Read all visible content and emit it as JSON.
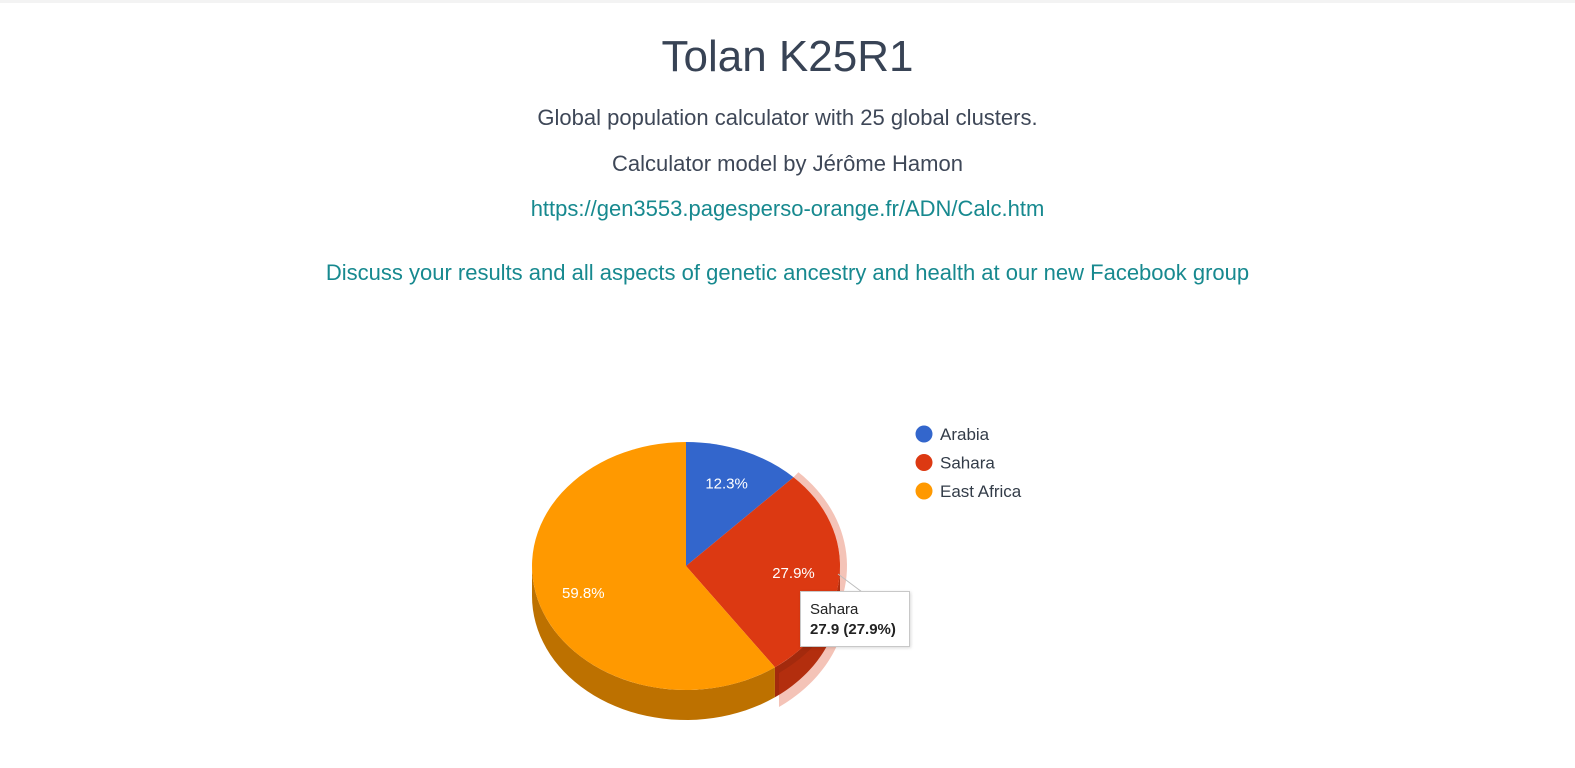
{
  "header": {
    "title": "Tolan K25R1",
    "subtitle": "Global population calculator with 25 global clusters.",
    "credit": "Calculator model by Jérôme Hamon",
    "link": "https://gen3553.pagesperso-orange.fr/ADN/Calc.htm",
    "facebook_link": "Discuss your results and all aspects of genetic ancestry and health at our new Facebook group"
  },
  "chart_data": {
    "type": "pie",
    "style": "3d",
    "legend_position": "right",
    "slices": [
      {
        "name": "Arabia",
        "value": 12.3,
        "label": "12.3%",
        "color": "#3366cc"
      },
      {
        "name": "Sahara",
        "value": 27.9,
        "label": "27.9%",
        "color": "#dc3912"
      },
      {
        "name": "East Africa",
        "value": 59.8,
        "label": "59.8%",
        "color": "#ff9900"
      }
    ],
    "tooltip": {
      "slice": "Sahara",
      "name": "Sahara",
      "value_text": "27.9 (27.9%)"
    }
  }
}
